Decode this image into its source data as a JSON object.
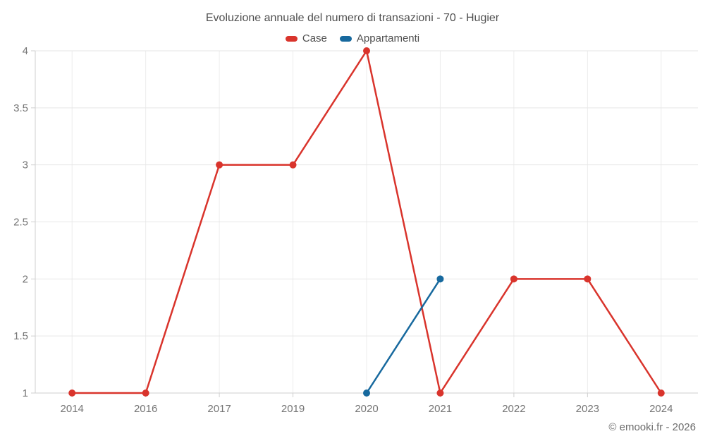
{
  "chart_data": {
    "type": "line",
    "title": "Evoluzione annuale del numero di transazioni - 70 - Hugier",
    "categories": [
      "2014",
      "2016",
      "2017",
      "2019",
      "2020",
      "2021",
      "2022",
      "2023",
      "2024"
    ],
    "series": [
      {
        "name": "Case",
        "color": "#d9342c",
        "values": [
          1,
          1,
          3,
          3,
          4,
          1,
          2,
          2,
          1
        ]
      },
      {
        "name": "Appartamenti",
        "color": "#17699e",
        "values": [
          null,
          null,
          null,
          null,
          1,
          2,
          null,
          null,
          null
        ]
      }
    ],
    "ylim": [
      1,
      4
    ],
    "yticks": [
      1,
      1.5,
      2,
      2.5,
      3,
      3.5,
      4
    ],
    "grid": true,
    "legend_position": "top",
    "xlabel": "",
    "ylabel": ""
  },
  "watermark": "© emooki.fr - 2026",
  "colors": {
    "background": "#ffffff",
    "grid_horizontal": "#e6e6e6",
    "grid_vertical": "#ececec",
    "axis_line": "#cfcfcf",
    "tick_label": "#757575",
    "title_text": "#4f4f4f",
    "watermark_text": "#6b6b6b"
  }
}
